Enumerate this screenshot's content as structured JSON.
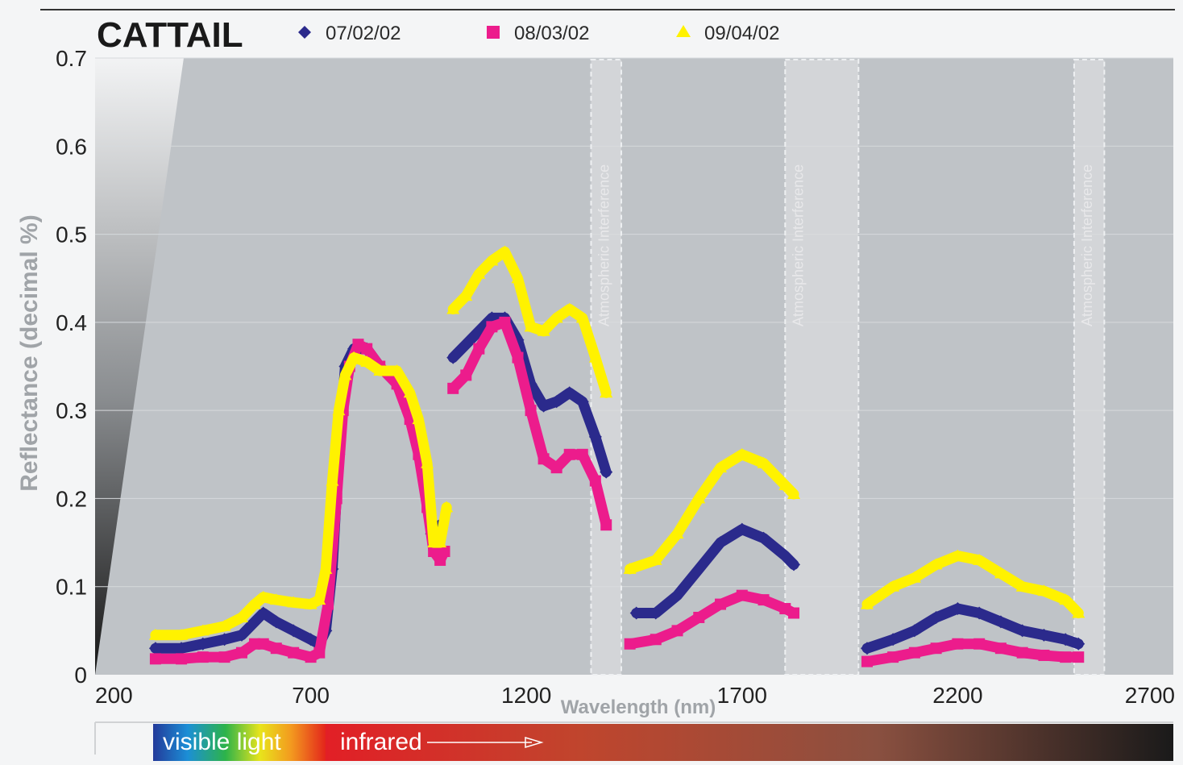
{
  "chart_data": {
    "type": "scatter",
    "title": "CATTAIL",
    "xlabel": "Wavelength (nm)",
    "ylabel": "Reflectance (decimal %)",
    "xlim": [
      200,
      2700
    ],
    "ylim": [
      0,
      0.7
    ],
    "x_ticks": [
      "200",
      "700",
      "1200",
      "1700",
      "2200",
      "2700"
    ],
    "y_ticks": [
      "0",
      "0.1",
      "0.2",
      "0.3",
      "0.4",
      "0.5",
      "0.6",
      "0.7"
    ],
    "legend_position": "top",
    "series": [
      {
        "name": "07/02/02",
        "marker": "diamond",
        "color": "#2b2a8c",
        "segments": [
          [
            [
              340,
              0.03
            ],
            [
              400,
              0.03
            ],
            [
              450,
              0.035
            ],
            [
              500,
              0.04
            ],
            [
              540,
              0.045
            ],
            [
              570,
              0.06
            ],
            [
              590,
              0.07
            ],
            [
              620,
              0.06
            ],
            [
              660,
              0.05
            ],
            [
              700,
              0.04
            ],
            [
              720,
              0.035
            ],
            [
              735,
              0.05
            ],
            [
              750,
              0.12
            ],
            [
              765,
              0.25
            ],
            [
              780,
              0.35
            ],
            [
              800,
              0.37
            ],
            [
              830,
              0.37
            ],
            [
              860,
              0.35
            ],
            [
              900,
              0.33
            ],
            [
              930,
              0.3
            ],
            [
              950,
              0.26
            ],
            [
              970,
              0.2
            ],
            [
              980,
              0.16
            ],
            [
              990,
              0.15
            ],
            [
              1000,
              0.17
            ]
          ],
          [
            [
              1030,
              0.36
            ],
            [
              1060,
              0.375
            ],
            [
              1090,
              0.39
            ],
            [
              1120,
              0.405
            ],
            [
              1150,
              0.405
            ],
            [
              1180,
              0.38
            ],
            [
              1210,
              0.33
            ],
            [
              1240,
              0.305
            ],
            [
              1270,
              0.31
            ],
            [
              1300,
              0.32
            ],
            [
              1330,
              0.31
            ],
            [
              1360,
              0.27
            ],
            [
              1385,
              0.23
            ]
          ],
          [
            [
              1455,
              0.07
            ],
            [
              1500,
              0.07
            ],
            [
              1550,
              0.09
            ],
            [
              1600,
              0.12
            ],
            [
              1650,
              0.15
            ],
            [
              1700,
              0.165
            ],
            [
              1750,
              0.155
            ],
            [
              1800,
              0.135
            ],
            [
              1820,
              0.125
            ]
          ],
          [
            [
              1990,
              0.03
            ],
            [
              2050,
              0.04
            ],
            [
              2100,
              0.05
            ],
            [
              2150,
              0.065
            ],
            [
              2200,
              0.075
            ],
            [
              2250,
              0.07
            ],
            [
              2300,
              0.06
            ],
            [
              2350,
              0.05
            ],
            [
              2400,
              0.045
            ],
            [
              2450,
              0.04
            ],
            [
              2480,
              0.035
            ]
          ]
        ]
      },
      {
        "name": "08/03/02",
        "marker": "square",
        "color": "#ec1c8c",
        "segments": [
          [
            [
              340,
              0.018
            ],
            [
              400,
              0.018
            ],
            [
              450,
              0.02
            ],
            [
              500,
              0.02
            ],
            [
              540,
              0.025
            ],
            [
              570,
              0.035
            ],
            [
              590,
              0.035
            ],
            [
              620,
              0.03
            ],
            [
              660,
              0.025
            ],
            [
              700,
              0.02
            ],
            [
              720,
              0.025
            ],
            [
              740,
              0.08
            ],
            [
              760,
              0.2
            ],
            [
              775,
              0.3
            ],
            [
              790,
              0.35
            ],
            [
              810,
              0.375
            ],
            [
              830,
              0.37
            ],
            [
              860,
              0.35
            ],
            [
              900,
              0.33
            ],
            [
              930,
              0.29
            ],
            [
              950,
              0.25
            ],
            [
              970,
              0.19
            ],
            [
              985,
              0.14
            ],
            [
              1000,
              0.13
            ],
            [
              1010,
              0.14
            ]
          ],
          [
            [
              1030,
              0.325
            ],
            [
              1060,
              0.34
            ],
            [
              1090,
              0.37
            ],
            [
              1120,
              0.395
            ],
            [
              1150,
              0.4
            ],
            [
              1180,
              0.36
            ],
            [
              1210,
              0.3
            ],
            [
              1240,
              0.245
            ],
            [
              1270,
              0.235
            ],
            [
              1300,
              0.25
            ],
            [
              1330,
              0.25
            ],
            [
              1360,
              0.22
            ],
            [
              1385,
              0.17
            ]
          ],
          [
            [
              1440,
              0.035
            ],
            [
              1500,
              0.04
            ],
            [
              1550,
              0.05
            ],
            [
              1600,
              0.065
            ],
            [
              1650,
              0.08
            ],
            [
              1700,
              0.09
            ],
            [
              1750,
              0.085
            ],
            [
              1800,
              0.075
            ],
            [
              1820,
              0.07
            ]
          ],
          [
            [
              1990,
              0.015
            ],
            [
              2050,
              0.02
            ],
            [
              2100,
              0.025
            ],
            [
              2150,
              0.03
            ],
            [
              2200,
              0.035
            ],
            [
              2250,
              0.035
            ],
            [
              2300,
              0.03
            ],
            [
              2350,
              0.025
            ],
            [
              2400,
              0.022
            ],
            [
              2450,
              0.02
            ],
            [
              2480,
              0.02
            ]
          ]
        ]
      },
      {
        "name": "09/04/02",
        "marker": "triangle",
        "color": "#fff200",
        "segments": [
          [
            [
              340,
              0.045
            ],
            [
              400,
              0.045
            ],
            [
              450,
              0.05
            ],
            [
              500,
              0.055
            ],
            [
              540,
              0.065
            ],
            [
              570,
              0.08
            ],
            [
              590,
              0.088
            ],
            [
              620,
              0.085
            ],
            [
              660,
              0.082
            ],
            [
              700,
              0.08
            ],
            [
              720,
              0.085
            ],
            [
              735,
              0.12
            ],
            [
              750,
              0.22
            ],
            [
              765,
              0.3
            ],
            [
              780,
              0.34
            ],
            [
              800,
              0.36
            ],
            [
              830,
              0.355
            ],
            [
              860,
              0.345
            ],
            [
              900,
              0.345
            ],
            [
              930,
              0.32
            ],
            [
              950,
              0.29
            ],
            [
              970,
              0.24
            ],
            [
              985,
              0.15
            ],
            [
              1000,
              0.15
            ],
            [
              1015,
              0.19
            ]
          ],
          [
            [
              1030,
              0.415
            ],
            [
              1060,
              0.43
            ],
            [
              1090,
              0.455
            ],
            [
              1120,
              0.47
            ],
            [
              1150,
              0.48
            ],
            [
              1180,
              0.45
            ],
            [
              1210,
              0.395
            ],
            [
              1240,
              0.39
            ],
            [
              1270,
              0.405
            ],
            [
              1300,
              0.415
            ],
            [
              1330,
              0.405
            ],
            [
              1360,
              0.36
            ],
            [
              1385,
              0.32
            ]
          ],
          [
            [
              1440,
              0.12
            ],
            [
              1500,
              0.13
            ],
            [
              1550,
              0.16
            ],
            [
              1600,
              0.2
            ],
            [
              1650,
              0.235
            ],
            [
              1700,
              0.25
            ],
            [
              1750,
              0.24
            ],
            [
              1800,
              0.215
            ],
            [
              1820,
              0.205
            ]
          ],
          [
            [
              1990,
              0.08
            ],
            [
              2050,
              0.1
            ],
            [
              2100,
              0.11
            ],
            [
              2150,
              0.125
            ],
            [
              2200,
              0.135
            ],
            [
              2250,
              0.13
            ],
            [
              2300,
              0.115
            ],
            [
              2350,
              0.1
            ],
            [
              2400,
              0.095
            ],
            [
              2450,
              0.085
            ],
            [
              2480,
              0.07
            ]
          ]
        ]
      }
    ],
    "bands": [
      {
        "label": "Atmospheric Interference",
        "x_range": [
          1350,
          1420
        ]
      },
      {
        "label": "Atmospheric Interference",
        "x_range": [
          1800,
          1970
        ]
      },
      {
        "label": "Atmospheric Interference",
        "x_range": [
          2470,
          2540
        ]
      }
    ],
    "spectrum_bar": {
      "visible_label": "visible light",
      "infrared_label": "infrared"
    }
  }
}
